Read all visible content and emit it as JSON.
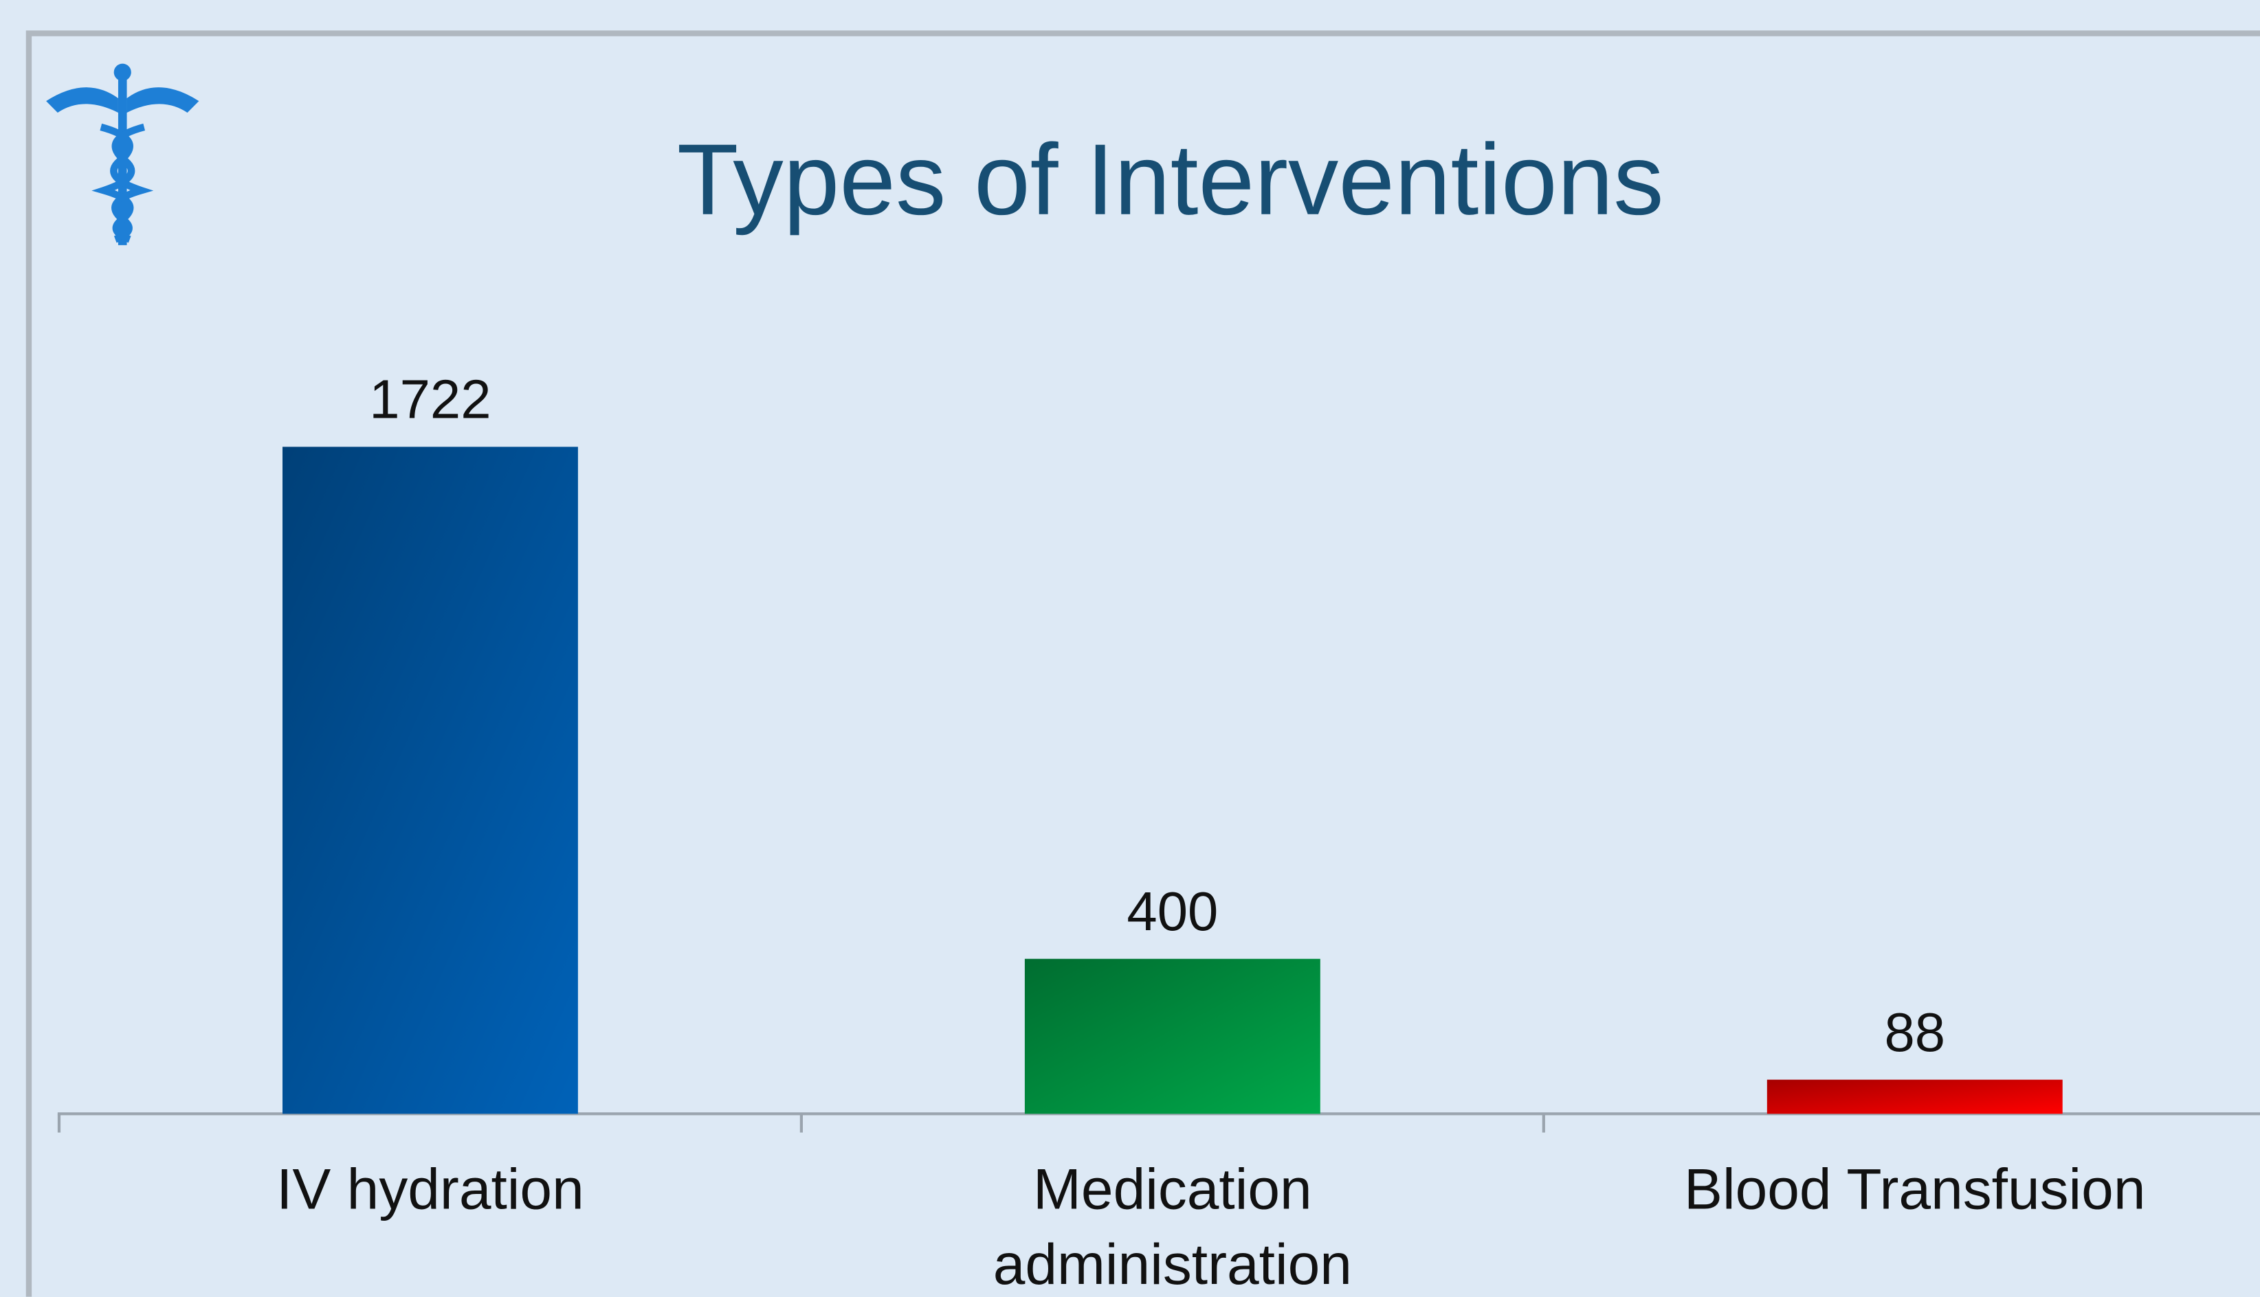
{
  "chart_data": {
    "type": "bar",
    "title": "Types of Interventions",
    "categories": [
      "IV hydration",
      "Medication administration",
      "Blood Transfusion"
    ],
    "values": [
      1722,
      400,
      88
    ],
    "colors": [
      "#0062b8",
      "#00a84a",
      "#ff0000"
    ]
  }
}
